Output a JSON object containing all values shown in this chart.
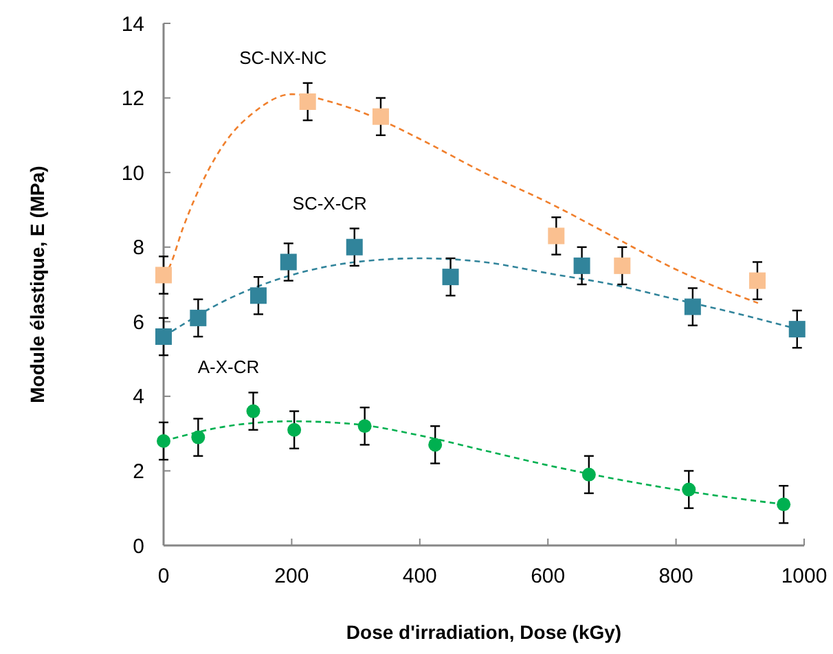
{
  "chart_data": {
    "type": "scatter",
    "xlabel": "Dose d'irradiation, Dose (kGy)",
    "ylabel": "Module élastique, E (MPa)",
    "xlim": [
      0,
      1000
    ],
    "ylim": [
      0,
      14
    ],
    "xticks": [
      0,
      200,
      400,
      600,
      800,
      1000
    ],
    "yticks": [
      0,
      2,
      4,
      6,
      8,
      10,
      12,
      14
    ],
    "grid": false,
    "series": [
      {
        "name": "SC-NX-NC",
        "marker": "square",
        "color": "#fac090",
        "x": [
          0,
          225,
          339,
          613,
          716,
          927
        ],
        "values": [
          7.25,
          11.9,
          11.5,
          8.3,
          7.5,
          7.1
        ],
        "errors": [
          0.5,
          0.5,
          0.5,
          0.5,
          0.5,
          0.5
        ]
      },
      {
        "name": "SC-X-CR",
        "marker": "square",
        "color": "#31849b",
        "x": [
          0,
          54,
          148,
          195,
          298,
          448,
          653,
          826,
          989
        ],
        "values": [
          5.6,
          6.1,
          6.7,
          7.6,
          8.0,
          7.2,
          7.5,
          6.4,
          5.8
        ],
        "errors": [
          0.5,
          0.5,
          0.5,
          0.5,
          0.5,
          0.5,
          0.5,
          0.5,
          0.5
        ]
      },
      {
        "name": "A-X-CR",
        "marker": "circle",
        "color": "#00b050",
        "x": [
          0,
          54,
          140,
          204,
          314,
          424,
          664,
          820,
          968
        ],
        "values": [
          2.8,
          2.9,
          3.6,
          3.1,
          3.2,
          2.7,
          1.9,
          1.5,
          1.1
        ],
        "errors": [
          0.5,
          0.5,
          0.5,
          0.5,
          0.5,
          0.5,
          0.5,
          0.5,
          0.5
        ]
      },
      {
        "type": "line",
        "line_style": "dashed",
        "marker": "none",
        "color": "#f07f2c",
        "x": [
          0,
          10,
          30,
          65,
          100,
          140,
          200,
          260,
          340,
          400,
          500,
          600,
          700,
          800,
          928
        ],
        "values": [
          7.2,
          7.5,
          8.5,
          9.9,
          10.9,
          11.6,
          12.1,
          11.9,
          11.4,
          10.9,
          10.0,
          9.2,
          8.3,
          7.4,
          6.5
        ]
      },
      {
        "type": "line",
        "line_style": "dashed",
        "marker": "none",
        "color": "#31849b",
        "x": [
          0,
          100,
          200,
          300,
          400,
          500,
          600,
          700,
          800,
          900,
          990
        ],
        "values": [
          5.6,
          6.6,
          7.25,
          7.6,
          7.7,
          7.6,
          7.3,
          7.0,
          6.6,
          6.2,
          5.8
        ]
      },
      {
        "type": "line",
        "line_style": "dashed",
        "marker": "none",
        "color": "#00b050",
        "x": [
          0,
          100,
          200,
          300,
          400,
          500,
          600,
          700,
          800,
          900,
          970
        ],
        "values": [
          2.8,
          3.2,
          3.33,
          3.25,
          2.95,
          2.55,
          2.15,
          1.8,
          1.5,
          1.25,
          1.1
        ]
      }
    ]
  }
}
